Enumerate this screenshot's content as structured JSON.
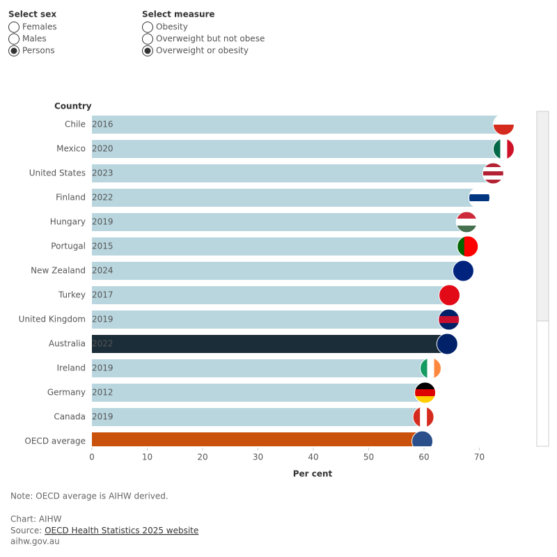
{
  "controls": {
    "sex": {
      "label": "Select sex",
      "options": [
        "Females",
        "Males",
        "Persons"
      ],
      "selected": "Persons"
    },
    "measure": {
      "label": "Select measure",
      "options": [
        "Obesity",
        "Overweight but not obese",
        "Overweight or obesity"
      ],
      "selected": "Overweight or obesity"
    }
  },
  "chart_data": {
    "type": "bar",
    "orientation": "horizontal",
    "y_axis_title": "Country",
    "x_axis_title": "Per cent",
    "categories": [
      "Chile",
      "Mexico",
      "United States",
      "Finland",
      "Hungary",
      "Portugal",
      "New Zealand",
      "Turkey",
      "United Kingdom",
      "Australia",
      "Ireland",
      "Germany",
      "Canada",
      "OECD average"
    ],
    "year_labels": [
      "2016",
      "2020",
      "2023",
      "2022",
      "2019",
      "2015",
      "2024",
      "2017",
      "2019",
      "2022",
      "2019",
      "2012",
      "2019",
      null
    ],
    "values": [
      74.4,
      74.4,
      72.5,
      70.0,
      67.7,
      67.9,
      67.1,
      64.6,
      64.5,
      64.2,
      61.2,
      60.2,
      59.9,
      59.7
    ],
    "colors": [
      "#b9d6df",
      "#b9d6df",
      "#b9d6df",
      "#b9d6df",
      "#b9d6df",
      "#b9d6df",
      "#b9d6df",
      "#b9d6df",
      "#b9d6df",
      "#1b2d38",
      "#b9d6df",
      "#b9d6df",
      "#b9d6df",
      "#c9510c"
    ],
    "xlim": [
      0,
      79
    ],
    "xticks": [
      0,
      10,
      20,
      30,
      40,
      50,
      60,
      70
    ]
  },
  "footer": {
    "note": "Note: OECD average is AIHW derived.",
    "chart": "Chart: AIHW",
    "source_prefix": "Source: ",
    "source_link": "OECD Health Statistics 2025 website",
    "site": "aihw.gov.au"
  }
}
